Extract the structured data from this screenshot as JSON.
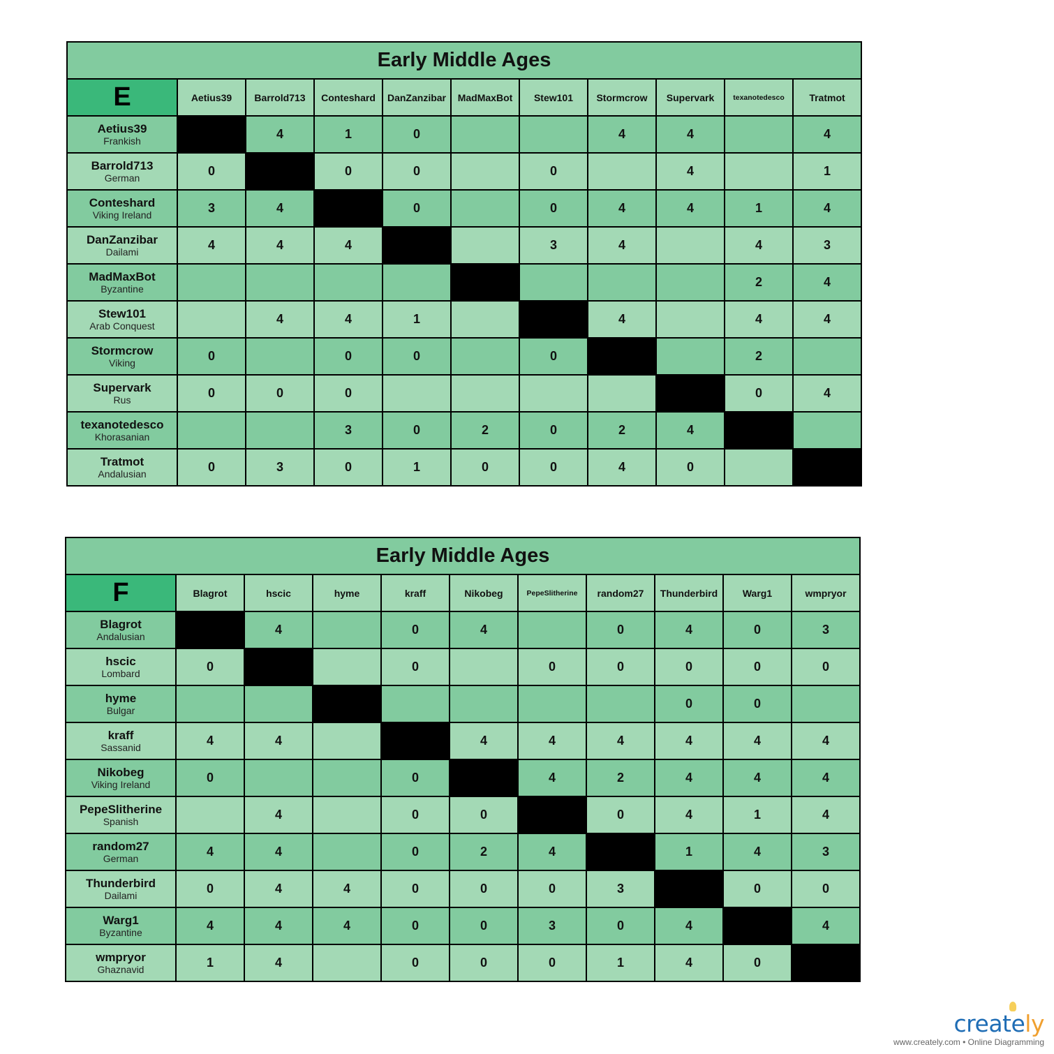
{
  "colors": {
    "title_bg": "#82cb9f",
    "corner_bg": "#3ab87a",
    "row_dark": "#82cb9f",
    "row_light": "#a3d9b5",
    "diagonal": "#000000"
  },
  "tables": [
    {
      "title": "Early Middle Ages",
      "group": "E",
      "columns": [
        "Aetius39",
        "Barrold713",
        "Conteshard",
        "DanZanzibar",
        "MadMaxBot",
        "Stew101",
        "Stormcrow",
        "Supervark",
        "texanotedesco",
        "Tratmot"
      ],
      "rows": [
        {
          "name": "Aetius39",
          "faction": "Frankish",
          "cells": [
            null,
            "4",
            "1",
            "0",
            "",
            "",
            "4",
            "4",
            "",
            "4"
          ]
        },
        {
          "name": "Barrold713",
          "faction": "German",
          "cells": [
            "0",
            null,
            "0",
            "0",
            "",
            "0",
            "",
            "4",
            "",
            "1"
          ]
        },
        {
          "name": "Conteshard",
          "faction": "Viking Ireland",
          "cells": [
            "3",
            "4",
            null,
            "0",
            "",
            "0",
            "4",
            "4",
            "1",
            "4"
          ]
        },
        {
          "name": "DanZanzibar",
          "faction": "Dailami",
          "cells": [
            "4",
            "4",
            "4",
            null,
            "",
            "3",
            "4",
            "",
            "4",
            "3"
          ]
        },
        {
          "name": "MadMaxBot",
          "faction": "Byzantine",
          "cells": [
            "",
            "",
            "",
            "",
            null,
            "",
            "",
            "",
            "2",
            "4"
          ]
        },
        {
          "name": "Stew101",
          "faction": "Arab Conquest",
          "cells": [
            "",
            "4",
            "4",
            "1",
            "",
            null,
            "4",
            "",
            "4",
            "4"
          ]
        },
        {
          "name": "Stormcrow",
          "faction": "Viking",
          "cells": [
            "0",
            "",
            "0",
            "0",
            "",
            "0",
            null,
            "",
            "2",
            ""
          ]
        },
        {
          "name": "Supervark",
          "faction": "Rus",
          "cells": [
            "0",
            "0",
            "0",
            "",
            "",
            "",
            "",
            null,
            "0",
            "4"
          ]
        },
        {
          "name": "texanotedesco",
          "faction": "Khorasanian",
          "cells": [
            "",
            "",
            "3",
            "0",
            "2",
            "0",
            "2",
            "4",
            null,
            ""
          ]
        },
        {
          "name": "Tratmot",
          "faction": "Andalusian",
          "cells": [
            "0",
            "3",
            "0",
            "1",
            "0",
            "0",
            "4",
            "0",
            "",
            null
          ]
        }
      ]
    },
    {
      "title": "Early Middle Ages",
      "group": "F",
      "columns": [
        "Blagrot",
        "hscic",
        "hyme",
        "kraff",
        "Nikobeg",
        "PepeSlitherine",
        "random27",
        "Thunderbird",
        "Warg1",
        "wmpryor"
      ],
      "rows": [
        {
          "name": "Blagrot",
          "faction": "Andalusian",
          "cells": [
            null,
            "4",
            "",
            "0",
            "4",
            "",
            "0",
            "4",
            "0",
            "3"
          ]
        },
        {
          "name": "hscic",
          "faction": "Lombard",
          "cells": [
            "0",
            null,
            "",
            "0",
            "",
            "0",
            "0",
            "0",
            "0",
            "0"
          ]
        },
        {
          "name": "hyme",
          "faction": "Bulgar",
          "cells": [
            "",
            "",
            null,
            "",
            "",
            "",
            "",
            "0",
            "0",
            ""
          ]
        },
        {
          "name": "kraff",
          "faction": "Sassanid",
          "cells": [
            "4",
            "4",
            "",
            null,
            "4",
            "4",
            "4",
            "4",
            "4",
            "4"
          ]
        },
        {
          "name": "Nikobeg",
          "faction": "Viking Ireland",
          "cells": [
            "0",
            "",
            "",
            "0",
            null,
            "4",
            "2",
            "4",
            "4",
            "4"
          ]
        },
        {
          "name": "PepeSlitherine",
          "faction": "Spanish",
          "cells": [
            "",
            "4",
            "",
            "0",
            "0",
            null,
            "0",
            "4",
            "1",
            "4"
          ]
        },
        {
          "name": "random27",
          "faction": "German",
          "cells": [
            "4",
            "4",
            "",
            "0",
            "2",
            "4",
            null,
            "1",
            "4",
            "3"
          ]
        },
        {
          "name": "Thunderbird",
          "faction": "Dailami",
          "cells": [
            "0",
            "4",
            "4",
            "0",
            "0",
            "0",
            "3",
            null,
            "0",
            "0"
          ]
        },
        {
          "name": "Warg1",
          "faction": "Byzantine",
          "cells": [
            "4",
            "4",
            "4",
            "0",
            "0",
            "3",
            "0",
            "4",
            null,
            "4"
          ]
        },
        {
          "name": "wmpryor",
          "faction": "Ghaznavid",
          "cells": [
            "1",
            "4",
            "",
            "0",
            "0",
            "0",
            "1",
            "4",
            "0",
            null
          ]
        }
      ]
    }
  ],
  "watermark": {
    "brand": "creately",
    "tagline": "www.creately.com • Online Diagramming"
  }
}
